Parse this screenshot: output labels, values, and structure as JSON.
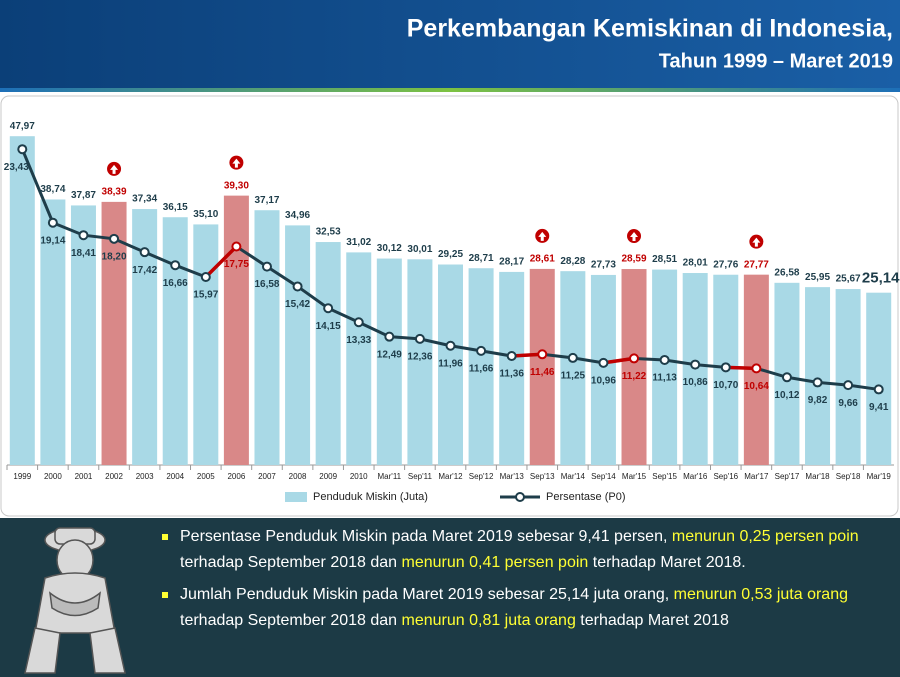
{
  "header": {
    "title": "Perkembangan Kemiskinan di Indonesia,",
    "subtitle": "Tahun 1999 – Maret 2019"
  },
  "chart_data": {
    "type": "combo",
    "categories": [
      "1999",
      "2000",
      "2001",
      "2002",
      "2003",
      "2004",
      "2005",
      "2006",
      "2007",
      "2008",
      "2009",
      "2010",
      "Mar'11",
      "Sep'11",
      "Mar'12",
      "Sep'12",
      "Mar'13",
      "Sep'13",
      "Mar'14",
      "Sep'14",
      "Mar'15",
      "Sep'15",
      "Mar'16",
      "Sep'16",
      "Mar'17",
      "Sep'17",
      "Mar'18",
      "Sep'18",
      "Mar'19"
    ],
    "ylim": [
      0,
      48
    ],
    "y2lim": [
      5,
      24.2
    ],
    "series": [
      {
        "name": "Penduduk Miskin (Juta)",
        "type": "bar",
        "color": "#a9d9e6",
        "values": [
          47.97,
          38.74,
          37.87,
          38.39,
          37.34,
          36.15,
          35.1,
          39.3,
          37.17,
          34.96,
          32.53,
          31.02,
          30.12,
          30.01,
          29.25,
          28.71,
          28.17,
          28.61,
          28.28,
          27.73,
          28.59,
          28.51,
          28.01,
          27.76,
          27.77,
          26.58,
          25.95,
          25.67,
          25.14
        ],
        "value_labels": [
          "47,97",
          "38,74",
          "37,87",
          "38,39",
          "37,34",
          "36,15",
          "35,10",
          "39,30",
          "37,17",
          "34,96",
          "32,53",
          "31,02",
          "30,12",
          "30,01",
          "29,25",
          "28,71",
          "28,17",
          "28,61",
          "28,28",
          "27,73",
          "28,59",
          "28,51",
          "28,01",
          "27,76",
          "27,77",
          "26,58",
          "25,95",
          "25,67",
          "25,14"
        ],
        "colors": [
          "#a9d9e6",
          "#a9d9e6",
          "#a9d9e6",
          "#d98888",
          "#a9d9e6",
          "#a9d9e6",
          "#a9d9e6",
          "#d98888",
          "#a9d9e6",
          "#a9d9e6",
          "#a9d9e6",
          "#a9d9e6",
          "#a9d9e6",
          "#a9d9e6",
          "#a9d9e6",
          "#a9d9e6",
          "#a9d9e6",
          "#d98888",
          "#a9d9e6",
          "#a9d9e6",
          "#d98888",
          "#a9d9e6",
          "#a9d9e6",
          "#a9d9e6",
          "#d98888",
          "#a9d9e6",
          "#a9d9e6",
          "#a9d9e6",
          "#a9d9e6"
        ],
        "label_colors": [
          "#1e3d4a",
          "#1e3d4a",
          "#1e3d4a",
          "#c00000",
          "#1e3d4a",
          "#1e3d4a",
          "#1e3d4a",
          "#c00000",
          "#1e3d4a",
          "#1e3d4a",
          "#1e3d4a",
          "#1e3d4a",
          "#1e3d4a",
          "#1e3d4a",
          "#1e3d4a",
          "#1e3d4a",
          "#1e3d4a",
          "#c00000",
          "#1e3d4a",
          "#1e3d4a",
          "#c00000",
          "#1e3d4a",
          "#1e3d4a",
          "#1e3d4a",
          "#c00000",
          "#1e3d4a",
          "#1e3d4a",
          "#1e3d4a",
          "#1e3d4a"
        ]
      },
      {
        "name": "Persentase (P0)",
        "type": "line",
        "axis": "y2",
        "color": "#1e3d4a",
        "values": [
          23.43,
          19.14,
          18.41,
          18.2,
          17.42,
          16.66,
          15.97,
          17.75,
          16.58,
          15.42,
          14.15,
          13.33,
          12.49,
          12.36,
          11.96,
          11.66,
          11.36,
          11.46,
          11.25,
          10.96,
          11.22,
          11.13,
          10.86,
          10.7,
          10.64,
          10.12,
          9.82,
          9.66,
          9.41
        ],
        "value_labels": [
          "23,43",
          "19,14",
          "18,41",
          "18,20",
          "17,42",
          "16,66",
          "15,97",
          "17,75",
          "16,58",
          "15,42",
          "14,15",
          "13,33",
          "12,49",
          "12,36",
          "11,96",
          "11,66",
          "11,36",
          "11,46",
          "11,25",
          "10,96",
          "11,22",
          "11,13",
          "10,86",
          "10,70",
          "10,64",
          "10,12",
          "9,82",
          "9,66",
          "9,41"
        ],
        "label_colors": [
          "#1e3d4a",
          "#1e3d4a",
          "#1e3d4a",
          "#1e3d4a",
          "#1e3d4a",
          "#1e3d4a",
          "#1e3d4a",
          "#c00000",
          "#1e3d4a",
          "#1e3d4a",
          "#1e3d4a",
          "#1e3d4a",
          "#1e3d4a",
          "#1e3d4a",
          "#1e3d4a",
          "#1e3d4a",
          "#1e3d4a",
          "#c00000",
          "#1e3d4a",
          "#1e3d4a",
          "#c00000",
          "#1e3d4a",
          "#1e3d4a",
          "#1e3d4a",
          "#c00000",
          "#1e3d4a",
          "#1e3d4a",
          "#1e3d4a",
          "#1e3d4a"
        ]
      }
    ]
  },
  "notes": [
    [
      {
        "text": "Persentase Penduduk Miskin pada Maret 2019 sebesar 9,41 persen, ",
        "color": "#ffffff"
      },
      {
        "text": "menurun 0,25 persen poin",
        "color": "#ffff33"
      },
      {
        "text": " terhadap September 2018 dan ",
        "color": "#ffffff"
      },
      {
        "text": "menurun 0,41 persen poin",
        "color": "#ffff33"
      },
      {
        "text": " terhadap Maret 2018.",
        "color": "#ffffff"
      }
    ],
    [
      {
        "text": "Jumlah Penduduk Miskin pada Maret 2019 sebesar 25,14 juta orang, ",
        "color": "#ffffff"
      },
      {
        "text": "menurun 0,53 juta orang",
        "color": "#ffff33"
      },
      {
        "text": " terhadap September 2018 dan ",
        "color": "#ffffff"
      },
      {
        "text": "menurun 0,81 juta orang",
        "color": "#ffff33"
      },
      {
        "text": " terhadap Maret 2018",
        "color": "#ffffff"
      }
    ]
  ]
}
